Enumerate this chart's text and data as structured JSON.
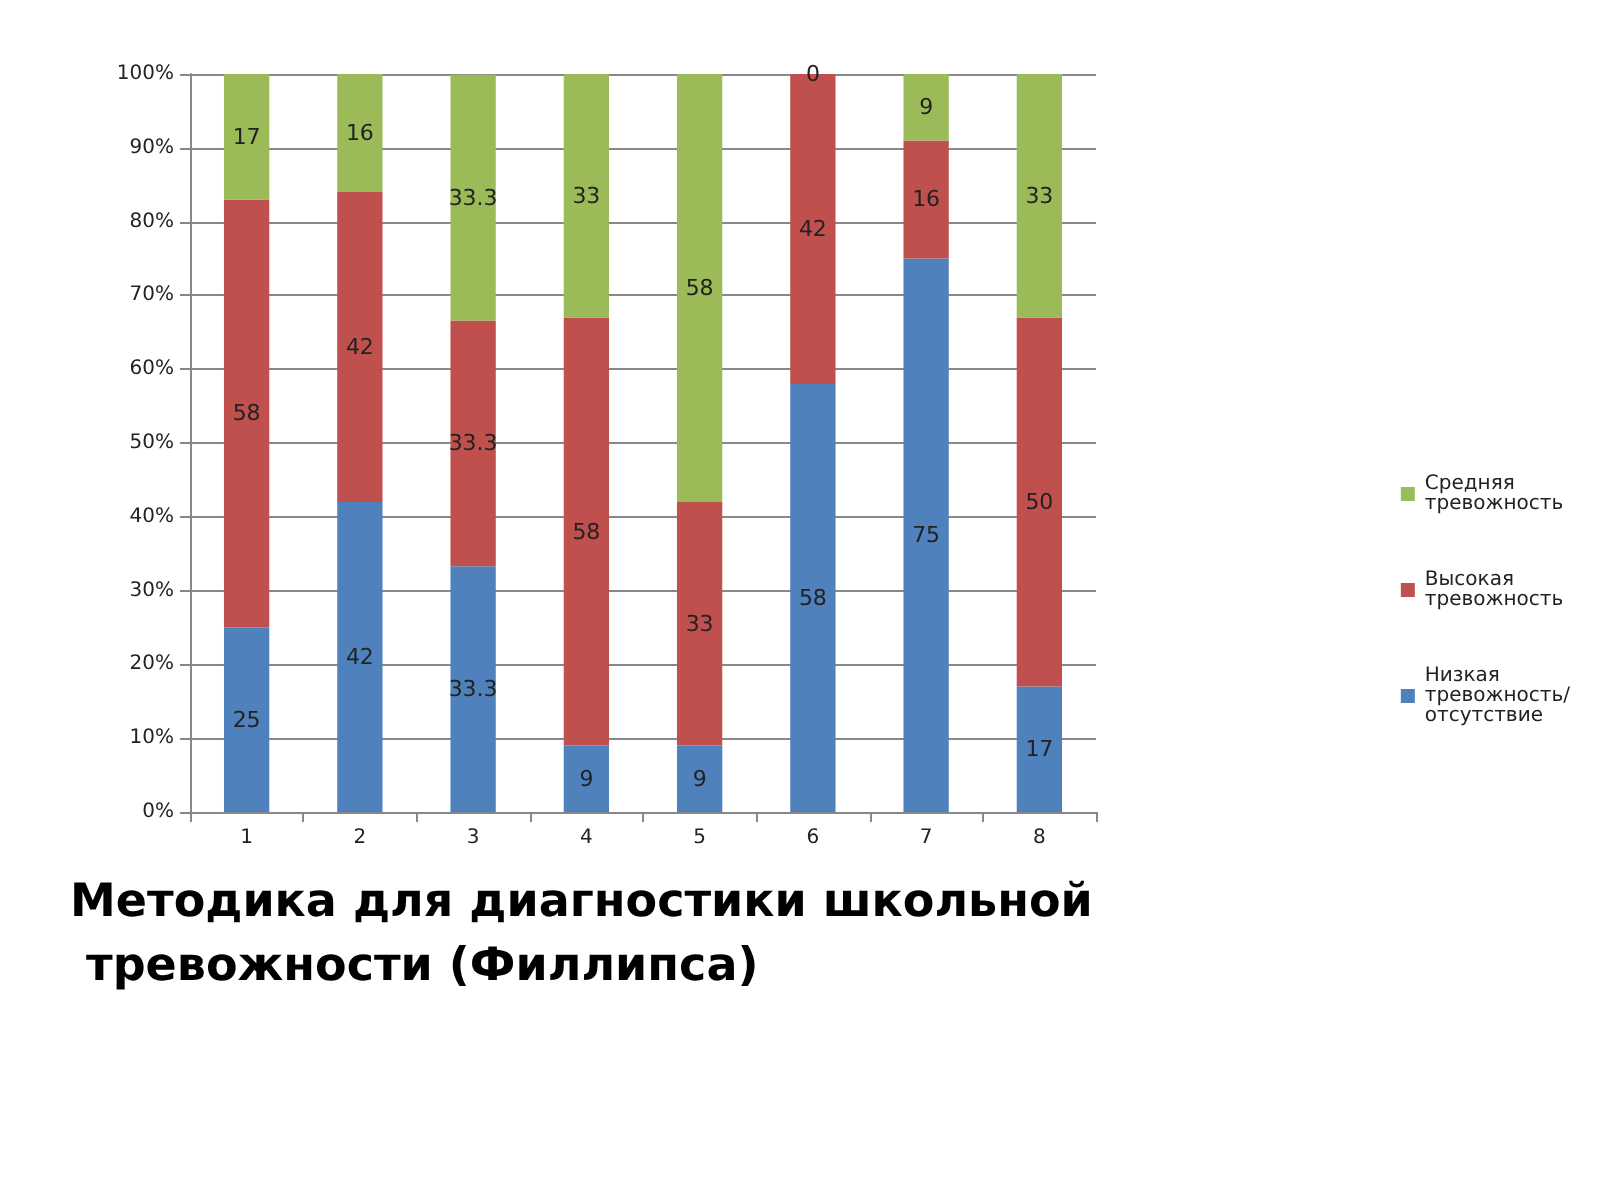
{
  "chart_data": {
    "type": "bar",
    "title": "Методика для диагностики школьной тревожности (Филлипса)",
    "categories": [
      "1",
      "2",
      "3",
      "4",
      "5",
      "6",
      "7",
      "8"
    ],
    "stacked": true,
    "data_labels": true,
    "grid": "y",
    "legend": "right",
    "ylim": [
      0,
      100
    ],
    "yticks": [
      {
        "value": 0,
        "label": "0%"
      },
      {
        "value": 10,
        "label": "10%"
      },
      {
        "value": 20,
        "label": "20%"
      },
      {
        "value": 30,
        "label": "30%"
      },
      {
        "value": 40,
        "label": "40%"
      },
      {
        "value": 50,
        "label": "50%"
      },
      {
        "value": 60,
        "label": "60%"
      },
      {
        "value": 70,
        "label": "70%"
      },
      {
        "value": 80,
        "label": "80%"
      },
      {
        "value": 90,
        "label": "90%"
      },
      {
        "value": 100,
        "label": "100%"
      }
    ],
    "series": [
      {
        "name": "Низкая тревожность/отсутствие",
        "color": "#4f81bd",
        "values": [
          25,
          42,
          33.3,
          9,
          9,
          58,
          75,
          17
        ]
      },
      {
        "name": "Высокая тревожность",
        "color": "#c0504d",
        "values": [
          58,
          42,
          33.3,
          58,
          33,
          42,
          16,
          50
        ]
      },
      {
        "name": "Средняя тревожность",
        "color": "#9bbb59",
        "values": [
          17,
          16,
          33.3,
          33,
          58,
          0,
          9,
          33
        ]
      }
    ]
  }
}
